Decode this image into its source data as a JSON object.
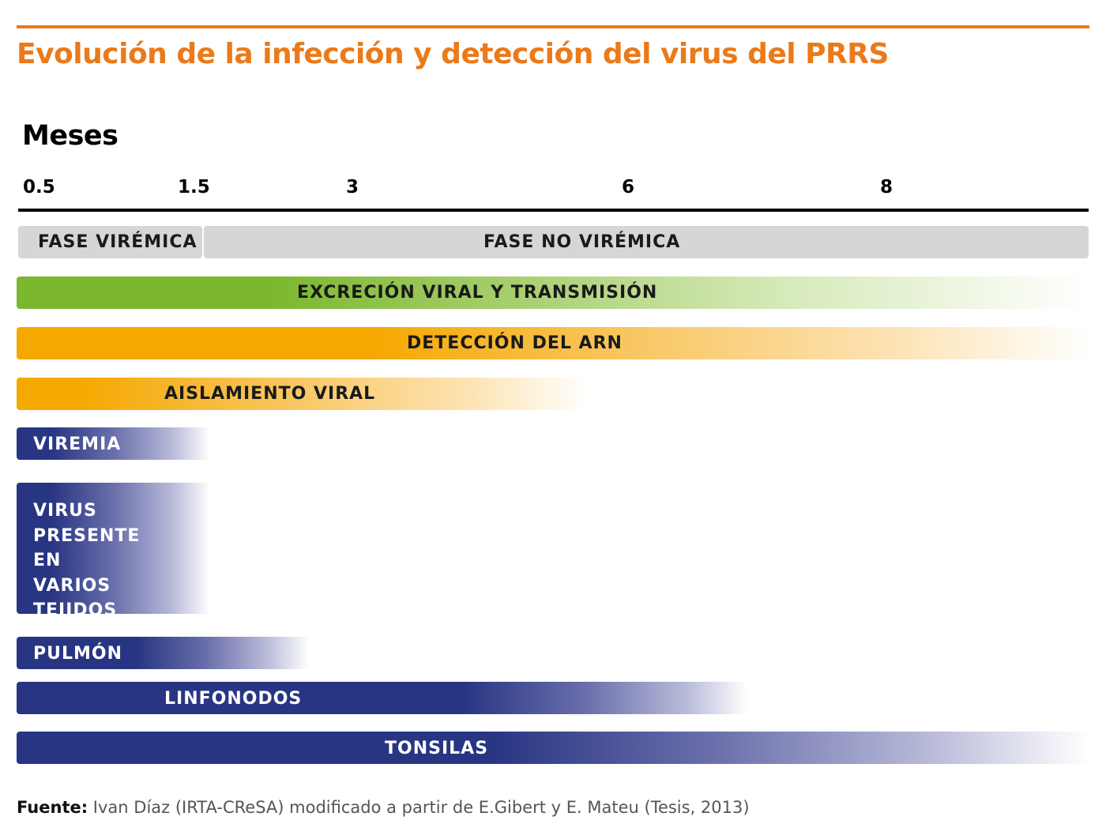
{
  "title": "Evolución de la infección y detección del virus del PRRS",
  "axis": {
    "label": "Meses",
    "ticks": [
      "0.5",
      "1.5",
      "3",
      "6",
      "8"
    ]
  },
  "phases": {
    "viremic": "FASE VIRÉMICA",
    "non_viremic": "FASE NO VIRÉMICA"
  },
  "bars": {
    "excretion": "EXCRECIÓN VIRAL Y TRANSMISIÓN",
    "rna": "DETECCIÓN DEL ARN",
    "isolation": "AISLAMIENTO VIRAL",
    "viremia": "VIREMIA",
    "tissues": "VIRUS PRESENTE EN VARIOS TEJIDOS",
    "lung": "PULMÓN",
    "lymph": "LINFONODOS",
    "tonsils": "TONSILAS"
  },
  "colors": {
    "accent": "#ea7a1a",
    "green": "#7cb82f",
    "orange": "#f5a800",
    "navy": "#283583",
    "phase_gray": "#d6d6d6"
  },
  "source": {
    "label": "Fuente:",
    "text": " Ivan Díaz (IRTA-CReSA) modificado a partir de E.Gibert y E. Mateu (Tesis, 2013)"
  }
}
